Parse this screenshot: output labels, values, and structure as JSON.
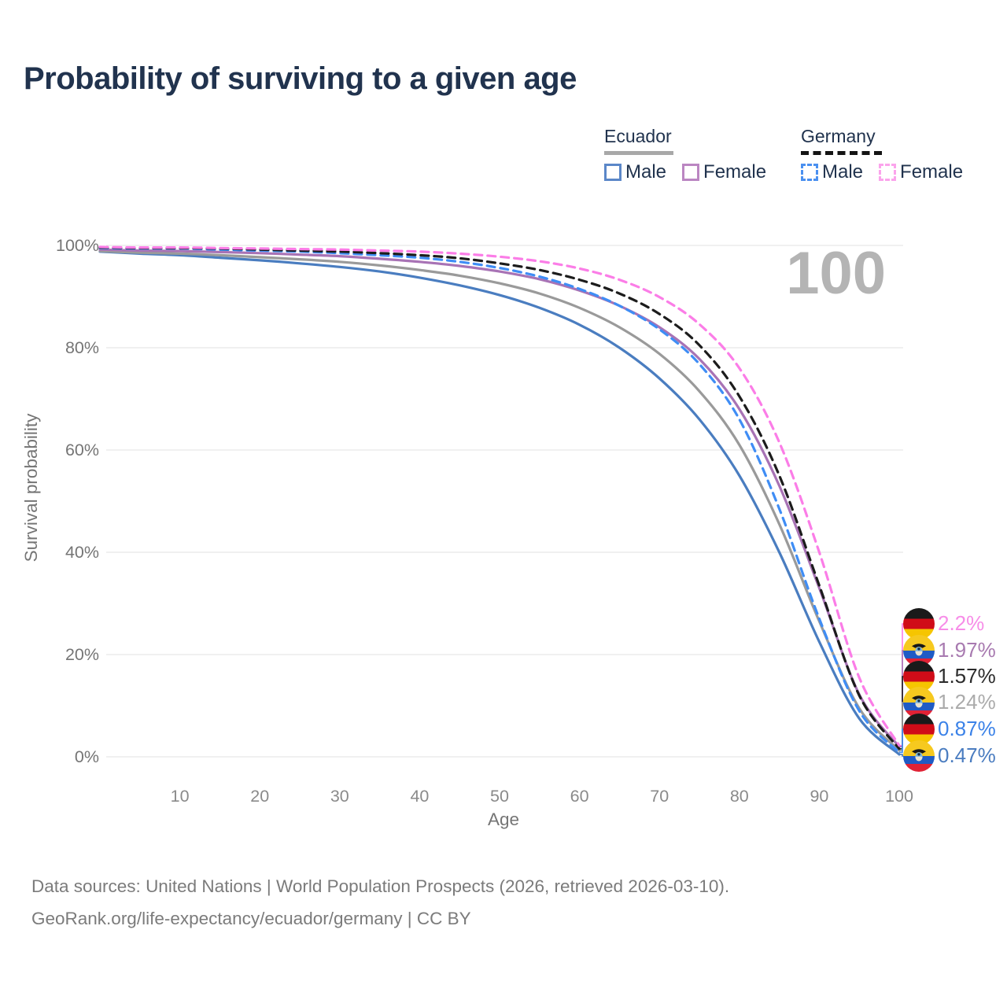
{
  "title": "Probability of surviving to a given age",
  "watermark_hover_age": "100",
  "legend": {
    "groups": [
      {
        "label": "Ecuador",
        "line_style": "solid",
        "underline_color": "#a8a8a8",
        "items": [
          {
            "label": "Male",
            "color": "#5b87c8",
            "dashed": false
          },
          {
            "label": "Female",
            "color": "#bb86c2",
            "dashed": false
          }
        ]
      },
      {
        "label": "Germany",
        "line_style": "dashed",
        "underline_color": "#141414",
        "items": [
          {
            "label": "Male",
            "color": "#4a90f0",
            "dashed": true
          },
          {
            "label": "Female",
            "color": "#fba4ec",
            "dashed": true
          }
        ]
      }
    ]
  },
  "chart_data": {
    "type": "line",
    "title": "Probability of surviving to a given age",
    "xlabel": "Age",
    "ylabel": "Survival probability",
    "xlim": [
      0,
      100
    ],
    "ylim": [
      0,
      100
    ],
    "x_ticks": [
      10,
      20,
      30,
      40,
      50,
      60,
      70,
      80,
      90,
      100
    ],
    "y_ticks": [
      0,
      20,
      40,
      60,
      80,
      100
    ],
    "y_tick_suffix": "%",
    "grid": "horizontal-only",
    "legend_position": "top-right",
    "hovered_x_value": "100",
    "ages": [
      0,
      5,
      10,
      15,
      20,
      25,
      30,
      35,
      40,
      45,
      50,
      55,
      60,
      65,
      70,
      75,
      80,
      85,
      90,
      95,
      100
    ],
    "series": [
      {
        "name": "Ecuador Male",
        "country": "Ecuador",
        "sex": "male",
        "color": "#4a7dc0",
        "dash": false,
        "values": [
          98.8,
          98.4,
          98.1,
          97.6,
          97.1,
          96.5,
          95.8,
          94.9,
          93.7,
          92.2,
          90.3,
          87.8,
          84.5,
          80.0,
          74.0,
          66.0,
          55.0,
          40.0,
          22.5,
          7.5,
          0.47
        ],
        "end_label": "0.47%",
        "end_label_color": "#4a7cc0",
        "flag": "ecuador",
        "end_slot": 5
      },
      {
        "name": "Ecuador",
        "country": "Ecuador",
        "sex": "all",
        "color": "#9a9a9a",
        "dash": false,
        "values": [
          98.9,
          98.6,
          98.4,
          98.1,
          97.7,
          97.3,
          96.8,
          96.1,
          95.2,
          94.1,
          92.6,
          90.6,
          87.8,
          84.0,
          78.8,
          71.5,
          61.0,
          45.5,
          26.5,
          9.5,
          1.24
        ],
        "end_label": "1.24%",
        "end_label_color": "#ababab",
        "flag": "ecuador",
        "end_slot": 3
      },
      {
        "name": "Ecuador Female",
        "country": "Ecuador",
        "sex": "female",
        "color": "#a873b5",
        "dash": false,
        "values": [
          99.2,
          99.0,
          98.9,
          98.7,
          98.5,
          98.2,
          97.9,
          97.4,
          96.8,
          96.0,
          94.9,
          93.4,
          91.2,
          88.2,
          84.0,
          77.8,
          68.0,
          53.0,
          33.0,
          12.2,
          1.97
        ],
        "end_label": "1.97%",
        "end_label_color": "#a87ab0",
        "flag": "ecuador",
        "end_slot": 1
      },
      {
        "name": "Germany Male",
        "country": "Germany",
        "sex": "male",
        "color": "#3f8df5",
        "dash": true,
        "values": [
          99.5,
          99.4,
          99.4,
          99.2,
          99.0,
          98.8,
          98.5,
          98.1,
          97.6,
          96.8,
          95.6,
          93.9,
          91.5,
          88.2,
          83.6,
          76.8,
          66.0,
          48.5,
          27.0,
          9.0,
          0.87
        ],
        "end_label": "0.87%",
        "end_label_color": "#3b82e8",
        "flag": "germany",
        "end_slot": 4
      },
      {
        "name": "Germany",
        "country": "Germany",
        "sex": "all",
        "color": "#1c1c1c",
        "dash": true,
        "values": [
          99.6,
          99.5,
          99.5,
          99.4,
          99.2,
          99.0,
          98.8,
          98.5,
          98.1,
          97.5,
          96.5,
          95.2,
          93.3,
          90.6,
          86.6,
          80.5,
          70.5,
          55.0,
          33.5,
          12.0,
          1.57
        ],
        "end_label": "1.57%",
        "end_label_color": "#2b2b2b",
        "flag": "germany",
        "end_slot": 2
      },
      {
        "name": "Germany Female",
        "country": "Germany",
        "sex": "female",
        "color": "#fb7de7",
        "dash": true,
        "values": [
          99.7,
          99.6,
          99.6,
          99.5,
          99.4,
          99.3,
          99.2,
          99.0,
          98.8,
          98.4,
          97.8,
          96.9,
          95.5,
          93.3,
          89.9,
          84.6,
          76.0,
          61.5,
          40.0,
          15.5,
          2.2
        ],
        "end_label": "2.2%",
        "end_label_color": "#f78de8",
        "flag": "germany",
        "end_slot": 0
      }
    ]
  },
  "footer": {
    "line1": "Data sources: United Nations | World Population Prospects (2026, retrieved 2026-03-10).",
    "line2": "GeoRank.org/life-expectancy/ecuador/germany | CC BY"
  }
}
